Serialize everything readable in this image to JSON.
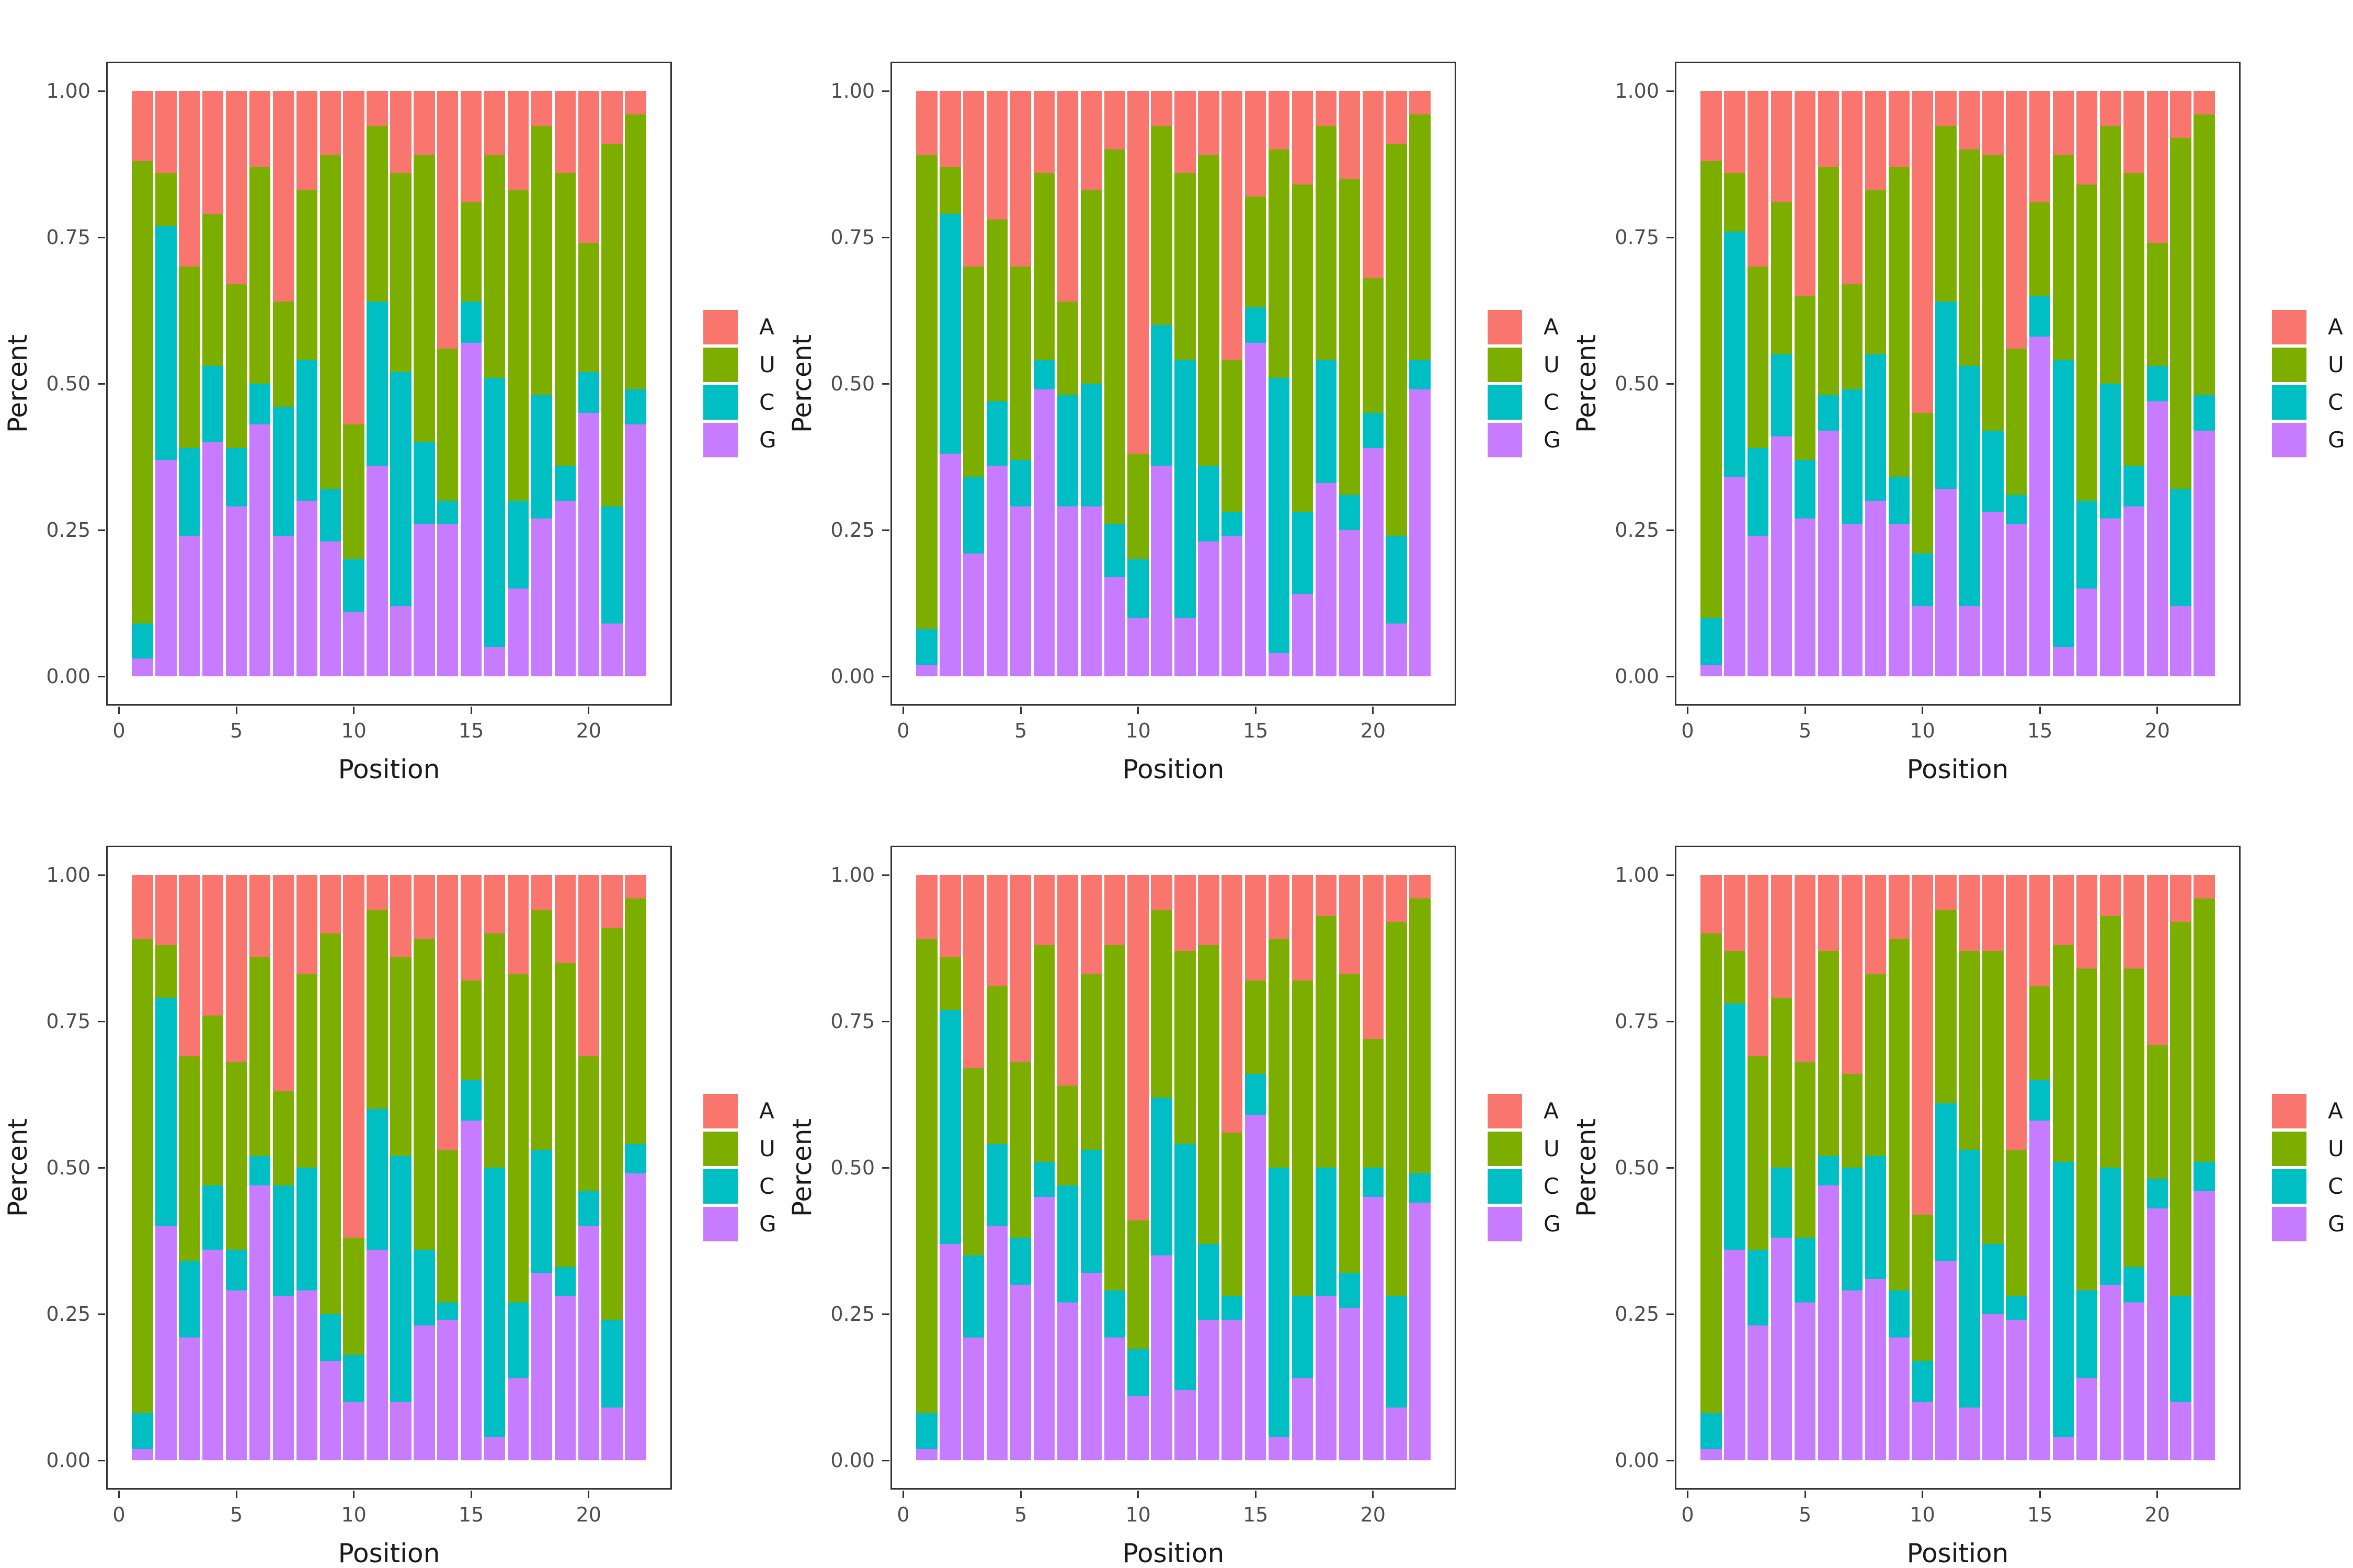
{
  "figure": {
    "rows": 2,
    "cols": 3,
    "background": "#ffffff"
  },
  "chart_data": {
    "type": "bar",
    "variant": "stacked-normalized",
    "title": "",
    "xlabel": "Position",
    "ylabel": "Percent",
    "x_tick_labels": [
      "0",
      "5",
      "10",
      "15",
      "20"
    ],
    "x_tick_values": [
      0,
      5,
      10,
      15,
      20
    ],
    "y_tick_labels": [
      "0.00",
      "0.25",
      "0.50",
      "0.75",
      "1.00"
    ],
    "y_tick_values": [
      0,
      0.25,
      0.5,
      0.75,
      1.0
    ],
    "xlim": [
      -0.545,
      23.545
    ],
    "ylim": [
      -0.05,
      1.05
    ],
    "grid": "off",
    "bar_width": 0.9,
    "positions": [
      1,
      2,
      3,
      4,
      5,
      6,
      7,
      8,
      9,
      10,
      11,
      12,
      13,
      14,
      15,
      16,
      17,
      18,
      19,
      20,
      21,
      22
    ],
    "stack_order_bottom_to_top": [
      "G",
      "C",
      "U",
      "A"
    ],
    "legend": {
      "position": "right",
      "entries": [
        {
          "label": "A",
          "color": "#F8766D"
        },
        {
          "label": "U",
          "color": "#7CAE00"
        },
        {
          "label": "C",
          "color": "#00BFC4"
        },
        {
          "label": "G",
          "color": "#C77CFF"
        }
      ]
    },
    "panels": [
      {
        "name": "panel-1",
        "series": {
          "G": [
            0.03,
            0.37,
            0.24,
            0.4,
            0.29,
            0.43,
            0.24,
            0.3,
            0.23,
            0.11,
            0.36,
            0.12,
            0.26,
            0.26,
            0.57,
            0.05,
            0.15,
            0.27,
            0.3,
            0.45,
            0.09,
            0.43
          ],
          "C": [
            0.06,
            0.4,
            0.15,
            0.13,
            0.1,
            0.07,
            0.22,
            0.24,
            0.09,
            0.09,
            0.28,
            0.4,
            0.14,
            0.04,
            0.07,
            0.46,
            0.15,
            0.21,
            0.06,
            0.07,
            0.2,
            0.06
          ],
          "U": [
            0.79,
            0.09,
            0.31,
            0.26,
            0.28,
            0.37,
            0.18,
            0.29,
            0.57,
            0.23,
            0.3,
            0.34,
            0.49,
            0.26,
            0.17,
            0.38,
            0.53,
            0.46,
            0.5,
            0.22,
            0.62,
            0.47
          ],
          "A": [
            0.12,
            0.14,
            0.3,
            0.21,
            0.33,
            0.13,
            0.36,
            0.17,
            0.11,
            0.57,
            0.06,
            0.14,
            0.11,
            0.44,
            0.19,
            0.11,
            0.17,
            0.06,
            0.14,
            0.26,
            0.09,
            0.04
          ]
        }
      },
      {
        "name": "panel-2",
        "series": {
          "G": [
            0.02,
            0.38,
            0.21,
            0.36,
            0.29,
            0.49,
            0.29,
            0.29,
            0.17,
            0.1,
            0.36,
            0.1,
            0.23,
            0.24,
            0.57,
            0.04,
            0.14,
            0.33,
            0.25,
            0.39,
            0.09,
            0.49
          ],
          "C": [
            0.06,
            0.41,
            0.13,
            0.11,
            0.08,
            0.05,
            0.19,
            0.21,
            0.09,
            0.1,
            0.24,
            0.44,
            0.13,
            0.04,
            0.06,
            0.47,
            0.14,
            0.21,
            0.06,
            0.06,
            0.15,
            0.05
          ],
          "U": [
            0.81,
            0.08,
            0.36,
            0.31,
            0.33,
            0.32,
            0.16,
            0.33,
            0.64,
            0.18,
            0.34,
            0.32,
            0.53,
            0.26,
            0.19,
            0.39,
            0.56,
            0.4,
            0.54,
            0.23,
            0.67,
            0.42
          ],
          "A": [
            0.11,
            0.13,
            0.3,
            0.22,
            0.3,
            0.14,
            0.36,
            0.17,
            0.1,
            0.62,
            0.06,
            0.14,
            0.11,
            0.46,
            0.18,
            0.1,
            0.16,
            0.06,
            0.15,
            0.32,
            0.09,
            0.04
          ]
        }
      },
      {
        "name": "panel-3",
        "series": {
          "G": [
            0.02,
            0.34,
            0.24,
            0.41,
            0.27,
            0.42,
            0.26,
            0.3,
            0.26,
            0.12,
            0.32,
            0.12,
            0.28,
            0.26,
            0.58,
            0.05,
            0.15,
            0.27,
            0.29,
            0.47,
            0.12,
            0.42
          ],
          "C": [
            0.08,
            0.42,
            0.15,
            0.14,
            0.1,
            0.06,
            0.23,
            0.25,
            0.08,
            0.09,
            0.32,
            0.41,
            0.14,
            0.05,
            0.07,
            0.49,
            0.15,
            0.23,
            0.07,
            0.06,
            0.2,
            0.06
          ],
          "U": [
            0.78,
            0.1,
            0.31,
            0.26,
            0.28,
            0.39,
            0.18,
            0.28,
            0.53,
            0.24,
            0.3,
            0.37,
            0.47,
            0.25,
            0.16,
            0.35,
            0.54,
            0.44,
            0.5,
            0.21,
            0.6,
            0.48
          ],
          "A": [
            0.12,
            0.14,
            0.3,
            0.19,
            0.35,
            0.13,
            0.33,
            0.17,
            0.13,
            0.55,
            0.06,
            0.1,
            0.11,
            0.44,
            0.19,
            0.11,
            0.16,
            0.06,
            0.14,
            0.26,
            0.08,
            0.04
          ]
        }
      },
      {
        "name": "panel-4",
        "series": {
          "G": [
            0.02,
            0.4,
            0.21,
            0.36,
            0.29,
            0.47,
            0.28,
            0.29,
            0.17,
            0.1,
            0.36,
            0.1,
            0.23,
            0.24,
            0.58,
            0.04,
            0.14,
            0.32,
            0.28,
            0.4,
            0.09,
            0.49
          ],
          "C": [
            0.06,
            0.39,
            0.13,
            0.11,
            0.07,
            0.05,
            0.19,
            0.21,
            0.08,
            0.08,
            0.24,
            0.42,
            0.13,
            0.03,
            0.07,
            0.46,
            0.13,
            0.21,
            0.05,
            0.06,
            0.15,
            0.05
          ],
          "U": [
            0.81,
            0.09,
            0.35,
            0.29,
            0.32,
            0.34,
            0.16,
            0.33,
            0.65,
            0.2,
            0.34,
            0.34,
            0.53,
            0.26,
            0.17,
            0.4,
            0.56,
            0.41,
            0.52,
            0.23,
            0.67,
            0.42
          ],
          "A": [
            0.11,
            0.12,
            0.31,
            0.24,
            0.32,
            0.14,
            0.37,
            0.17,
            0.1,
            0.62,
            0.06,
            0.14,
            0.11,
            0.47,
            0.18,
            0.1,
            0.17,
            0.06,
            0.15,
            0.31,
            0.09,
            0.04
          ]
        }
      },
      {
        "name": "panel-5",
        "series": {
          "G": [
            0.02,
            0.37,
            0.21,
            0.4,
            0.3,
            0.45,
            0.27,
            0.32,
            0.21,
            0.11,
            0.35,
            0.12,
            0.24,
            0.24,
            0.59,
            0.04,
            0.14,
            0.28,
            0.26,
            0.45,
            0.09,
            0.44
          ],
          "C": [
            0.06,
            0.4,
            0.14,
            0.14,
            0.08,
            0.06,
            0.2,
            0.21,
            0.08,
            0.08,
            0.27,
            0.42,
            0.13,
            0.04,
            0.07,
            0.46,
            0.14,
            0.22,
            0.06,
            0.05,
            0.19,
            0.05
          ],
          "U": [
            0.81,
            0.09,
            0.32,
            0.27,
            0.3,
            0.37,
            0.17,
            0.3,
            0.59,
            0.22,
            0.32,
            0.33,
            0.51,
            0.28,
            0.16,
            0.39,
            0.54,
            0.43,
            0.51,
            0.22,
            0.64,
            0.47
          ],
          "A": [
            0.11,
            0.14,
            0.33,
            0.19,
            0.32,
            0.12,
            0.36,
            0.17,
            0.12,
            0.59,
            0.06,
            0.13,
            0.12,
            0.44,
            0.18,
            0.11,
            0.18,
            0.07,
            0.17,
            0.28,
            0.08,
            0.04
          ]
        }
      },
      {
        "name": "panel-6",
        "series": {
          "G": [
            0.02,
            0.36,
            0.23,
            0.38,
            0.27,
            0.47,
            0.29,
            0.31,
            0.21,
            0.1,
            0.34,
            0.09,
            0.25,
            0.24,
            0.58,
            0.04,
            0.14,
            0.3,
            0.27,
            0.43,
            0.1,
            0.46
          ],
          "C": [
            0.06,
            0.42,
            0.13,
            0.12,
            0.11,
            0.05,
            0.21,
            0.21,
            0.08,
            0.07,
            0.27,
            0.44,
            0.12,
            0.04,
            0.07,
            0.47,
            0.15,
            0.2,
            0.06,
            0.05,
            0.18,
            0.05
          ],
          "U": [
            0.82,
            0.09,
            0.33,
            0.29,
            0.3,
            0.35,
            0.16,
            0.31,
            0.6,
            0.25,
            0.33,
            0.34,
            0.5,
            0.25,
            0.16,
            0.37,
            0.55,
            0.43,
            0.51,
            0.23,
            0.64,
            0.45
          ],
          "A": [
            0.1,
            0.13,
            0.31,
            0.21,
            0.32,
            0.13,
            0.34,
            0.17,
            0.11,
            0.58,
            0.06,
            0.13,
            0.13,
            0.47,
            0.19,
            0.12,
            0.16,
            0.07,
            0.16,
            0.29,
            0.08,
            0.04
          ]
        }
      }
    ]
  }
}
